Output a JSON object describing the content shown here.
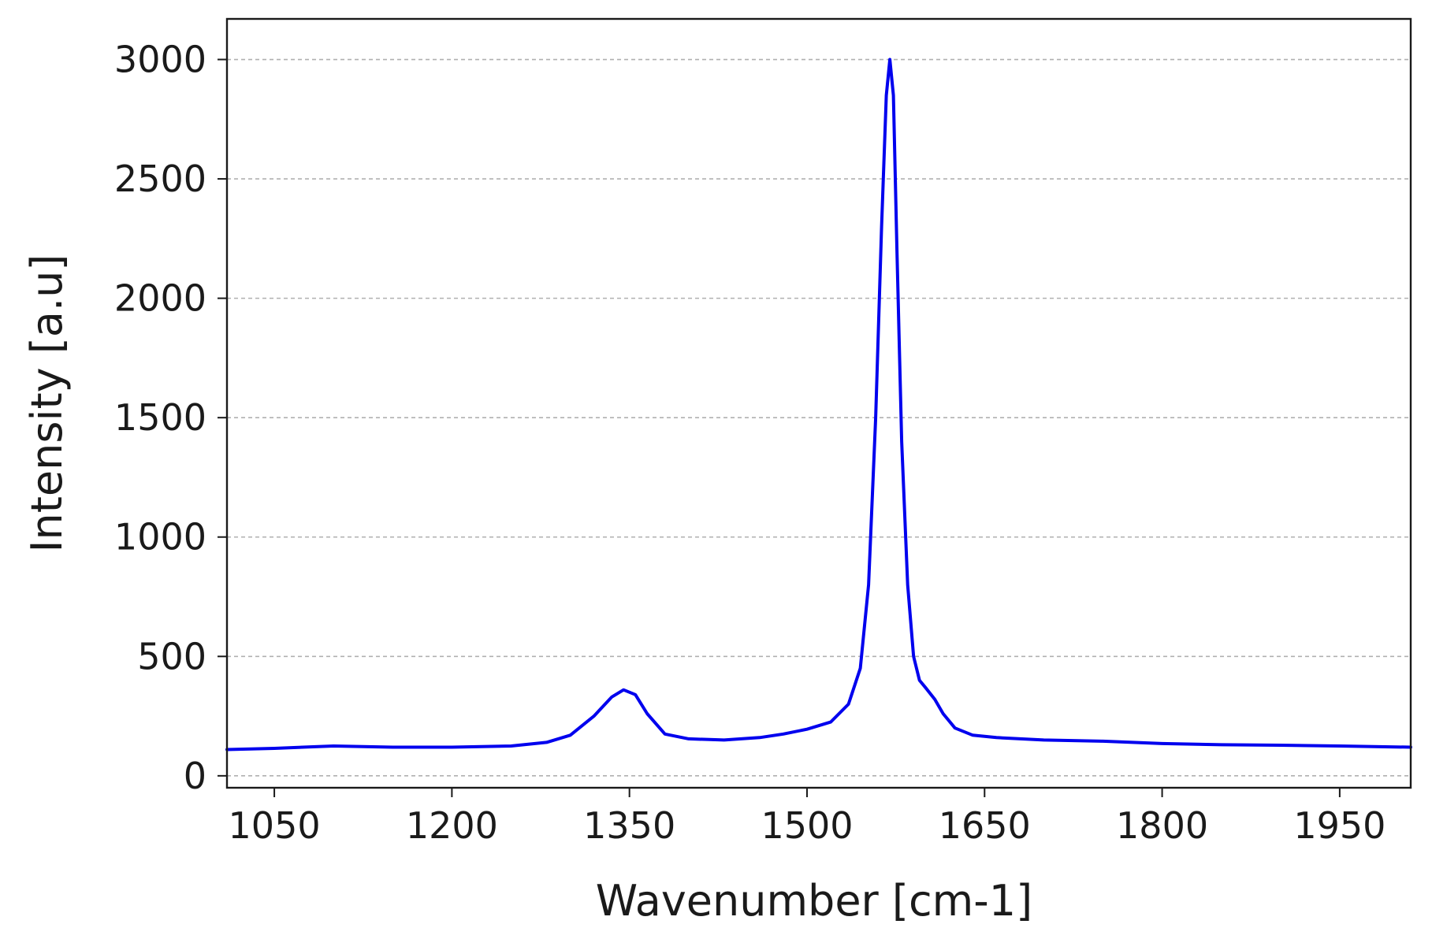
{
  "chart_data": {
    "type": "line",
    "xlabel": "Wavenumber [cm-1]",
    "ylabel": "Intensity [a.u]",
    "xlim": [
      1010,
      2010
    ],
    "ylim": [
      -50,
      3170
    ],
    "xticks": [
      1050,
      1200,
      1350,
      1500,
      1650,
      1800,
      1950
    ],
    "yticks": [
      0,
      500,
      1000,
      1500,
      2000,
      2500,
      3000
    ],
    "grid": {
      "y": true,
      "x": false,
      "style": "dashed"
    },
    "line_color": "#0000ee",
    "series": [
      {
        "x": [
          1010,
          1050,
          1100,
          1150,
          1200,
          1250,
          1280,
          1300,
          1320,
          1335,
          1345,
          1355,
          1365,
          1380,
          1400,
          1430,
          1460,
          1480,
          1500,
          1520,
          1535,
          1545,
          1552,
          1558,
          1563,
          1567,
          1570,
          1573,
          1576,
          1580,
          1585,
          1590,
          1595,
          1600,
          1608,
          1615,
          1625,
          1640,
          1660,
          1700,
          1750,
          1800,
          1850,
          1900,
          1950,
          2010
        ],
        "y": [
          110,
          115,
          125,
          120,
          120,
          125,
          140,
          170,
          250,
          330,
          360,
          340,
          260,
          175,
          155,
          150,
          160,
          175,
          195,
          225,
          300,
          450,
          800,
          1500,
          2300,
          2850,
          3000,
          2850,
          2200,
          1400,
          800,
          500,
          400,
          370,
          320,
          260,
          200,
          170,
          160,
          150,
          145,
          135,
          130,
          128,
          125,
          120
        ]
      }
    ]
  }
}
